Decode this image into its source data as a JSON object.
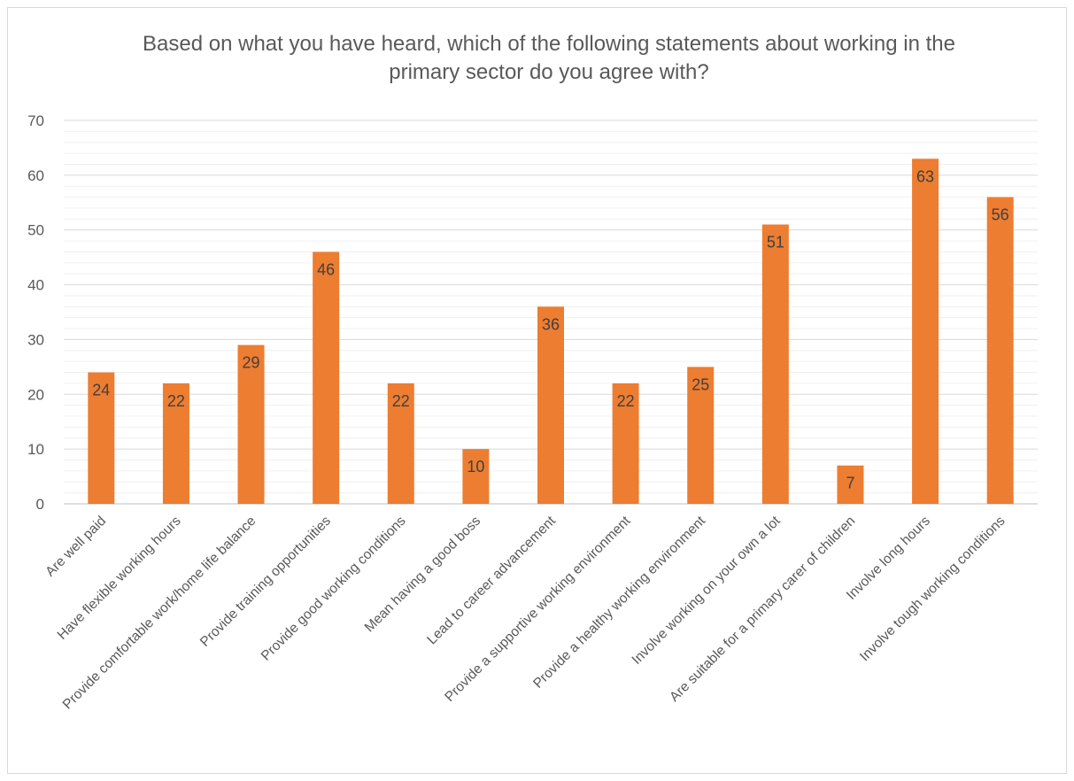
{
  "chart_data": {
    "type": "bar",
    "title": "Based on what you have heard, which of the following statements about working in the primary sector do you agree with?",
    "xlabel": "",
    "ylabel": "",
    "ylim": [
      0,
      70
    ],
    "yticks": [
      0,
      10,
      20,
      30,
      40,
      50,
      60,
      70
    ],
    "grid": true,
    "data_labels": true,
    "bar_color": "#ED7D31",
    "categories": [
      "Are well paid",
      "Have flexible working hours",
      "Provide comfortable work/home life balance",
      "Provide training opportunities",
      "Provide good working conditions",
      "Mean having a good boss",
      "Lead to career advancement",
      "Provide a supportive working environment",
      "Provide a healthy working environment",
      "Involve working on your own a lot",
      "Are suitable for a primary carer of children",
      "Involve long hours",
      "Involve tough working conditions"
    ],
    "values": [
      24,
      22,
      29,
      46,
      22,
      10,
      36,
      22,
      25,
      51,
      7,
      63,
      56
    ]
  }
}
